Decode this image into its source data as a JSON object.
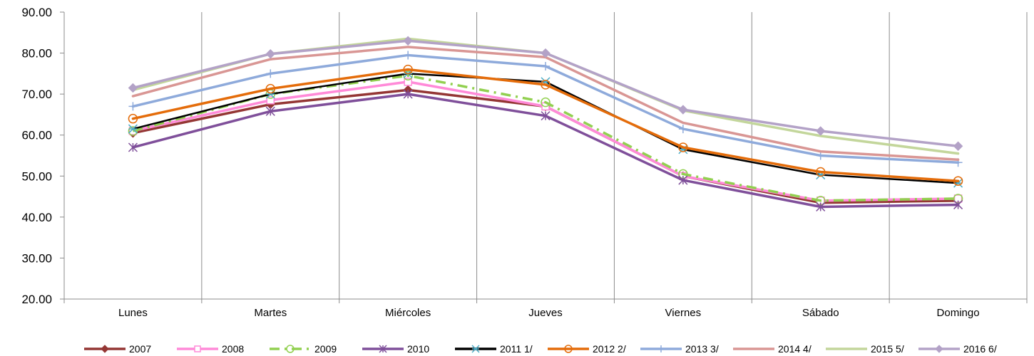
{
  "chart_data": {
    "type": "line",
    "categories": [
      "Lunes",
      "Martes",
      "Miércoles",
      "Jueves",
      "Viernes",
      "Sábado",
      "Domingo"
    ],
    "ylim": [
      20,
      90
    ],
    "yticks": [
      "20.00",
      "30.00",
      "40.00",
      "50.00",
      "60.00",
      "70.00",
      "80.00",
      "90.00"
    ],
    "grid": "vertical",
    "legend_position": "bottom",
    "series": [
      {
        "name": "2007",
        "values": [
          60.5,
          67.5,
          71.0,
          67.0,
          50.0,
          43.5,
          44.0
        ],
        "color": "#943634",
        "marker": "diamond",
        "dash": "solid"
      },
      {
        "name": "2008",
        "values": [
          61.0,
          68.5,
          73.0,
          67.0,
          50.0,
          44.0,
          44.5
        ],
        "color": "#ff8ad8",
        "marker": "square",
        "dash": "solid"
      },
      {
        "name": "2009",
        "values": [
          61.0,
          70.0,
          74.5,
          68.0,
          50.5,
          44.0,
          44.5
        ],
        "color": "#92d050",
        "marker": "circle",
        "dash": "dash"
      },
      {
        "name": "2010",
        "values": [
          57.0,
          65.8,
          70.0,
          64.7,
          49.0,
          42.5,
          43.0
        ],
        "color": "#7f4f9a",
        "marker": "star",
        "dash": "solid"
      },
      {
        "name": "2011 1/",
        "values": [
          61.5,
          70.0,
          75.0,
          73.0,
          56.5,
          50.3,
          48.3
        ],
        "color": "#000000",
        "marker": "asterisk",
        "dash": "solid"
      },
      {
        "name": "2012 2/",
        "values": [
          64.0,
          71.3,
          76.0,
          72.3,
          57.0,
          51.0,
          48.8
        ],
        "color": "#e46c0a",
        "marker": "circle",
        "dash": "solid"
      },
      {
        "name": "2013 3/",
        "values": [
          67.0,
          75.0,
          79.5,
          76.8,
          61.5,
          55.0,
          53.3
        ],
        "color": "#8eaadb",
        "marker": "plus",
        "dash": "solid"
      },
      {
        "name": "2014 4/",
        "values": [
          69.5,
          78.5,
          81.5,
          79.0,
          63.0,
          56.0,
          54.0
        ],
        "color": "#d99694",
        "marker": "none",
        "dash": "solid"
      },
      {
        "name": "2015 5/",
        "values": [
          71.0,
          79.8,
          83.5,
          80.0,
          66.0,
          59.8,
          55.5
        ],
        "color": "#c3d69b",
        "marker": "none",
        "dash": "solid"
      },
      {
        "name": "2016 6/",
        "values": [
          71.5,
          79.8,
          83.0,
          80.0,
          66.2,
          61.0,
          57.3
        ],
        "color": "#b3a2c7",
        "marker": "diamond",
        "dash": "solid"
      }
    ]
  }
}
